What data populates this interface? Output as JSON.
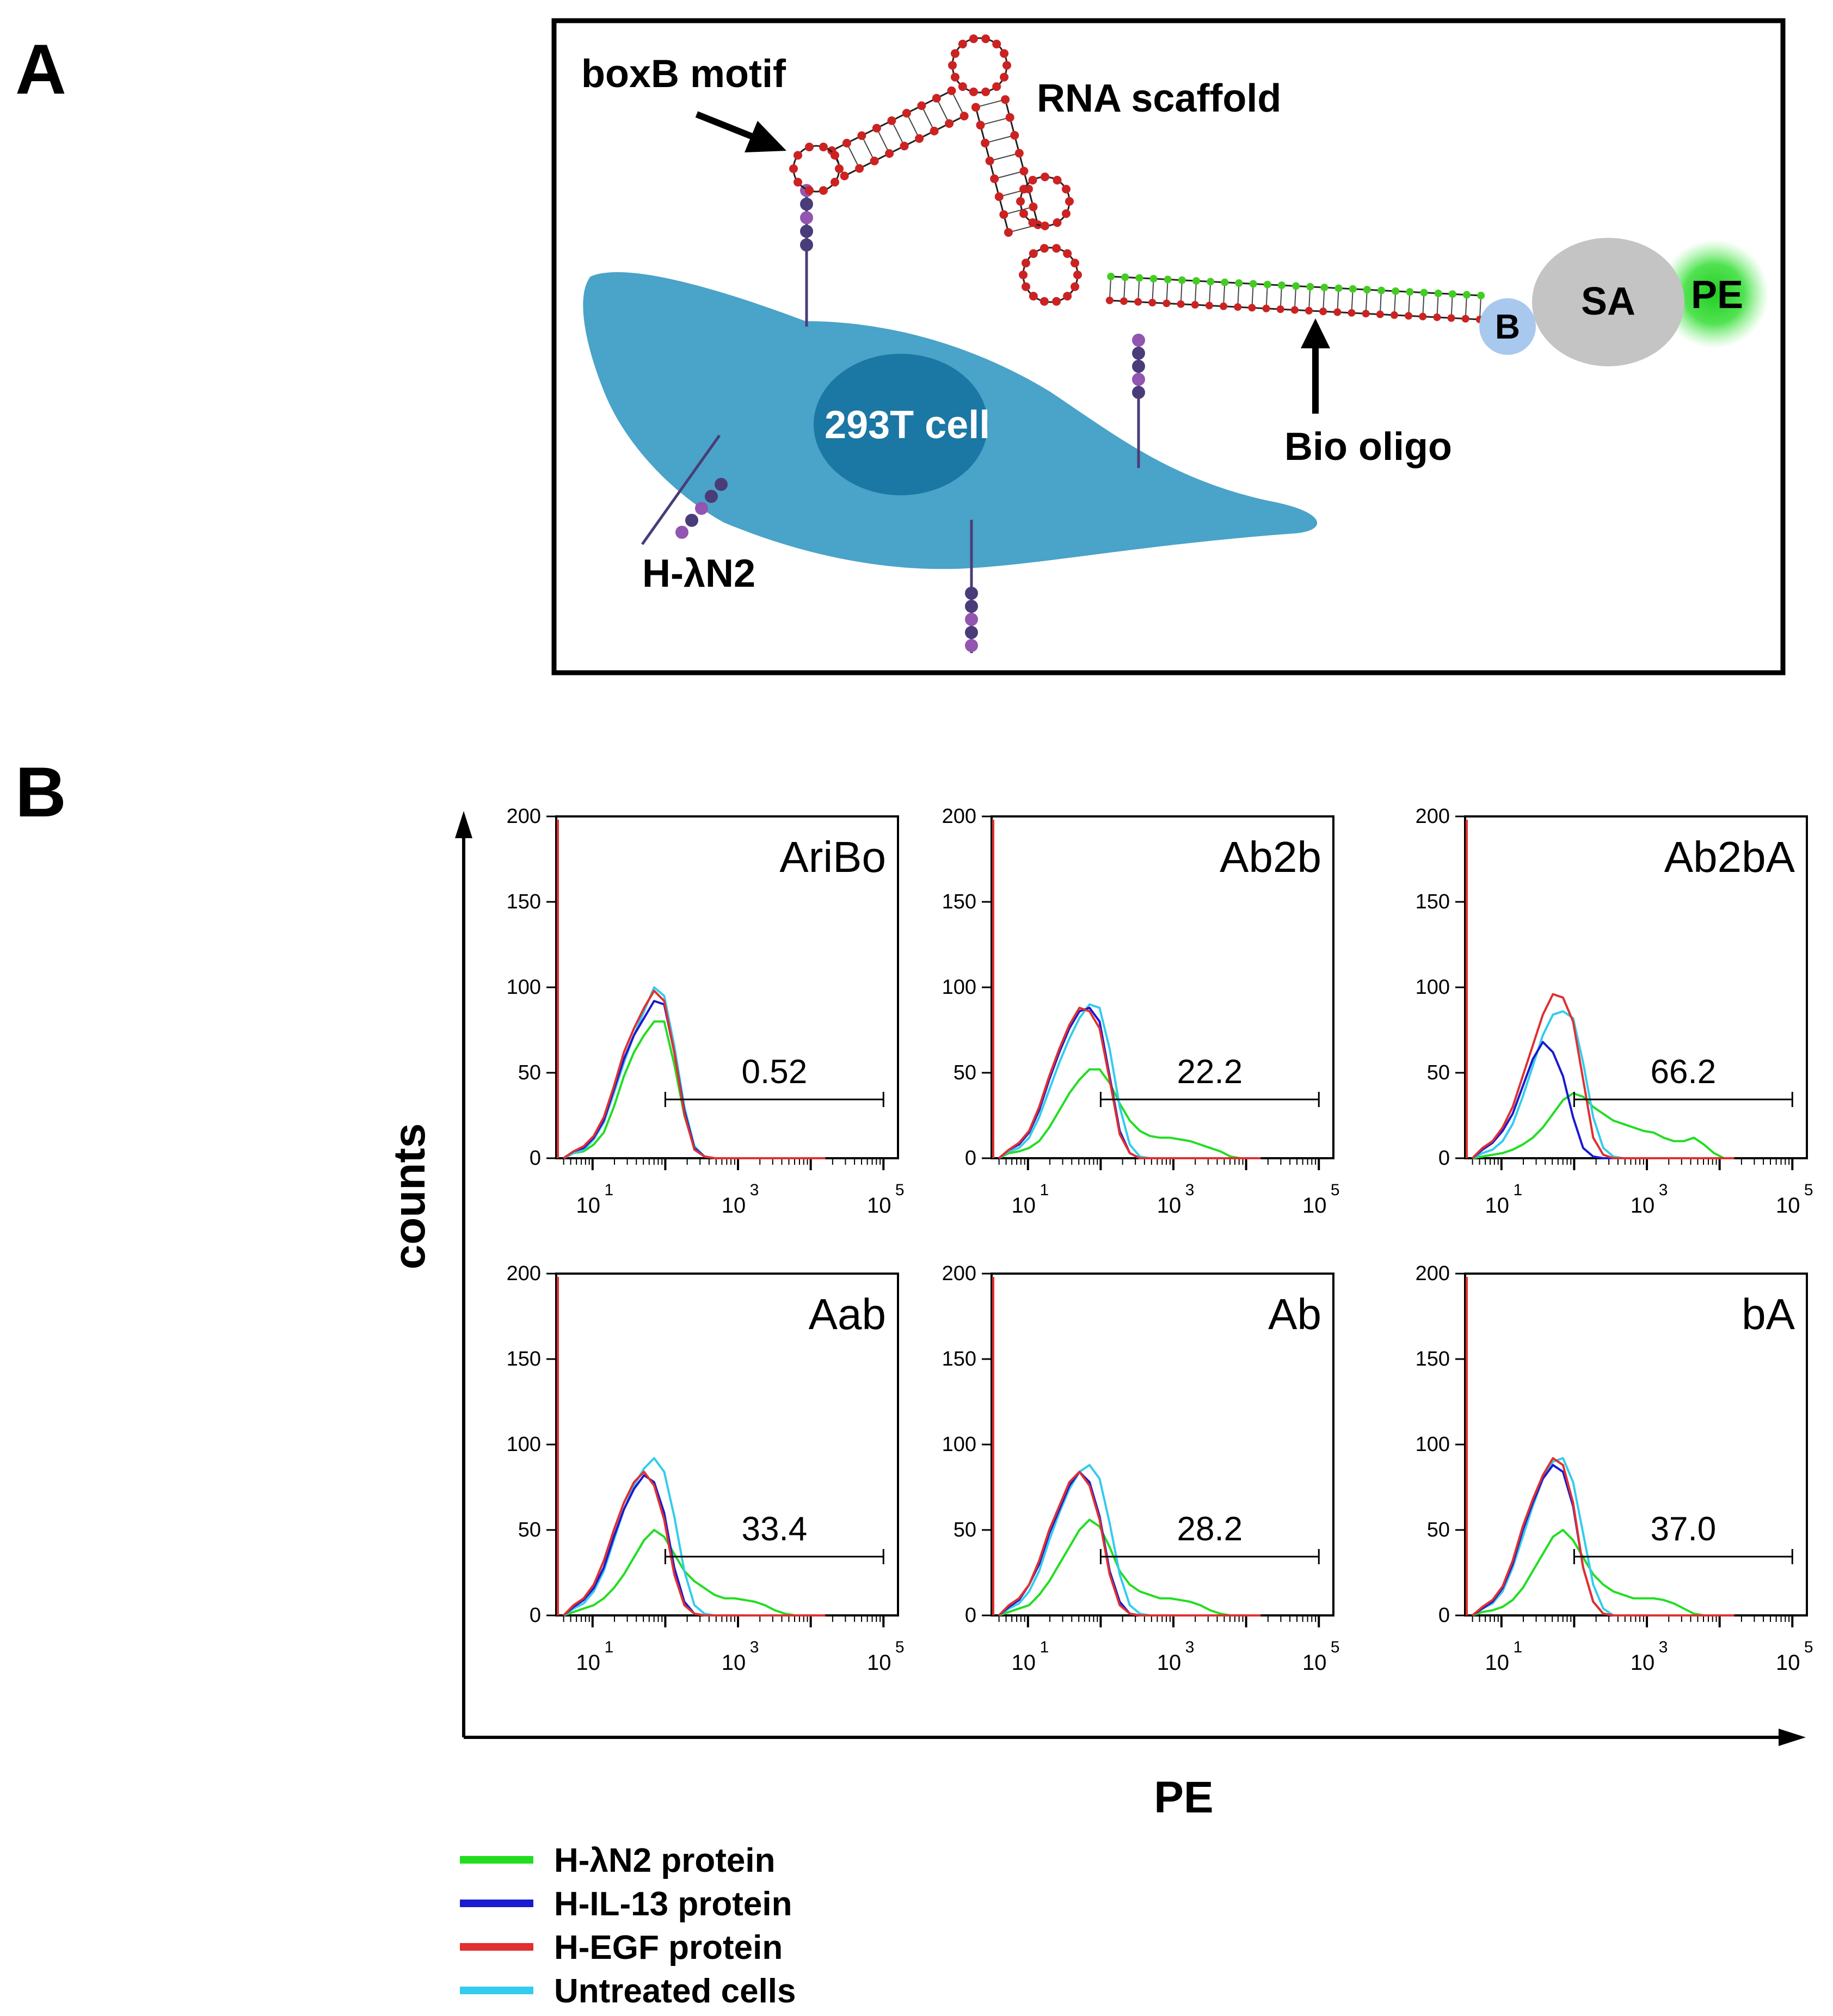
{
  "panels": {
    "a": {
      "letter": "A",
      "labels": {
        "boxb": "boxB motif",
        "rna": "RNA scaffold",
        "cell": "293T cell",
        "bio": "Bio oligo",
        "hln2": "H-λN2",
        "b": "B",
        "sa": "SA",
        "pe": "PE"
      },
      "colors": {
        "cell_body": "#4aa3c8",
        "nucleus": "#1b77a3",
        "rna_dot": "#cc2222",
        "oligo_dot": "#44cc22",
        "bead_dark": "#4a3c78",
        "bead_light": "#9255b0",
        "sa": "#c4c4c4",
        "b": "#a8c8ee",
        "pe_glow": "#22cc22"
      }
    },
    "b": {
      "letter": "B"
    }
  },
  "chart_data": {
    "type": "line",
    "title": "",
    "xlabel": "PE",
    "ylabel": "counts",
    "xscale": "log",
    "xlim_log10": [
      0.5,
      5.2
    ],
    "ylim": [
      0,
      200
    ],
    "y_ticks": [
      "0",
      "50",
      "100",
      "150",
      "200"
    ],
    "x_ticks": [
      {
        "base": "10",
        "exp": "1",
        "log": 1
      },
      {
        "base": "10",
        "exp": "3",
        "log": 3
      },
      {
        "base": "10",
        "exp": "5",
        "log": 5
      }
    ],
    "legend": [
      {
        "key": "hln2",
        "label": "H-λN2 protein",
        "color": "#22dd22"
      },
      {
        "key": "il13",
        "label": "H-IL-13 protein",
        "color": "#1a1ad0"
      },
      {
        "key": "egf",
        "label": "H-EGF protein",
        "color": "#e03030"
      },
      {
        "key": "untreated",
        "label": "Untreated cells",
        "color": "#33ccee"
      }
    ],
    "gate": {
      "from_log10": 2.0,
      "to_log10": 5.0
    },
    "subplots": [
      {
        "name": "AriBo",
        "gate_value": "0.52",
        "x_log10": 1.7,
        "series": [
          {
            "key": "hln2",
            "values": [
              0,
              3,
              4,
              8,
              15,
              30,
              48,
              62,
              72,
              80,
              80,
              55,
              25,
              6,
              1,
              0,
              0,
              0,
              0,
              0,
              0,
              0,
              0,
              0,
              0,
              0,
              0
            ]
          },
          {
            "key": "il13",
            "values": [
              0,
              4,
              6,
              12,
              22,
              40,
              58,
              72,
              82,
              92,
              90,
              62,
              28,
              6,
              1,
              0,
              0,
              0,
              0,
              0,
              0,
              0,
              0,
              0,
              0,
              0,
              0
            ]
          },
          {
            "key": "egf",
            "values": [
              0,
              4,
              7,
              13,
              24,
              42,
              62,
              76,
              88,
              98,
              92,
              62,
              26,
              5,
              1,
              0,
              0,
              0,
              0,
              0,
              0,
              0,
              0,
              0,
              0,
              0,
              0
            ]
          },
          {
            "key": "untreated",
            "values": [
              0,
              3,
              5,
              11,
              21,
              38,
              56,
              72,
              86,
              100,
              95,
              66,
              30,
              7,
              1,
              0,
              0,
              0,
              0,
              0,
              0,
              0,
              0,
              0,
              0,
              0,
              0
            ]
          }
        ]
      },
      {
        "name": "Ab2b",
        "gate_value": "22.2",
        "x_log10": 1.6,
        "series": [
          {
            "key": "hln2",
            "values": [
              0,
              3,
              4,
              6,
              10,
              18,
              28,
              38,
              46,
              52,
              52,
              44,
              32,
              22,
              16,
              13,
              12,
              12,
              11,
              10,
              8,
              6,
              4,
              1,
              0,
              0,
              0
            ]
          },
          {
            "key": "il13",
            "values": [
              0,
              5,
              8,
              15,
              28,
              46,
              62,
              76,
              86,
              88,
              80,
              48,
              16,
              3,
              0,
              0,
              0,
              0,
              0,
              0,
              0,
              0,
              0,
              0,
              0,
              0,
              0
            ]
          },
          {
            "key": "egf",
            "values": [
              0,
              5,
              9,
              16,
              30,
              48,
              64,
              78,
              88,
              86,
              76,
              46,
              14,
              3,
              0,
              0,
              0,
              0,
              0,
              0,
              0,
              0,
              0,
              0,
              0,
              0,
              0
            ]
          },
          {
            "key": "untreated",
            "values": [
              0,
              4,
              6,
              12,
              24,
              40,
              56,
              70,
              82,
              90,
              88,
              64,
              30,
              8,
              1,
              0,
              0,
              0,
              0,
              0,
              0,
              0,
              0,
              0,
              0,
              0,
              0
            ]
          }
        ]
      },
      {
        "name": "Ab2bA",
        "gate_value": "66.2",
        "x_log10": 1.6,
        "series": [
          {
            "key": "hln2",
            "values": [
              0,
              1,
              2,
              3,
              5,
              8,
              12,
              18,
              26,
              34,
              38,
              36,
              30,
              26,
              22,
              20,
              18,
              16,
              15,
              12,
              10,
              10,
              12,
              8,
              3,
              0,
              0
            ]
          },
          {
            "key": "il13",
            "values": [
              0,
              5,
              9,
              16,
              26,
              42,
              58,
              68,
              62,
              48,
              24,
              6,
              1,
              0,
              0,
              0,
              0,
              0,
              0,
              0,
              0,
              0,
              0,
              0,
              0,
              0,
              0
            ]
          },
          {
            "key": "egf",
            "values": [
              0,
              6,
              10,
              18,
              30,
              48,
              66,
              84,
              96,
              94,
              80,
              46,
              12,
              2,
              0,
              0,
              0,
              0,
              0,
              0,
              0,
              0,
              0,
              0,
              0,
              0,
              0
            ]
          },
          {
            "key": "untreated",
            "values": [
              0,
              3,
              5,
              10,
              20,
              36,
              54,
              72,
              84,
              86,
              82,
              56,
              24,
              6,
              1,
              0,
              0,
              0,
              0,
              0,
              0,
              0,
              0,
              0,
              0,
              0,
              0
            ]
          }
        ]
      },
      {
        "name": "Aab",
        "gate_value": "33.4",
        "x_log10": 1.7,
        "series": [
          {
            "key": "hln2",
            "values": [
              0,
              2,
              4,
              6,
              10,
              16,
              24,
              34,
              44,
              50,
              46,
              36,
              26,
              20,
              16,
              12,
              10,
              10,
              9,
              8,
              6,
              3,
              1,
              0,
              0,
              0,
              0
            ]
          },
          {
            "key": "il13",
            "values": [
              0,
              5,
              9,
              16,
              28,
              46,
              62,
              74,
              82,
              78,
              60,
              28,
              8,
              1,
              0,
              0,
              0,
              0,
              0,
              0,
              0,
              0,
              0,
              0,
              0,
              0,
              0
            ]
          },
          {
            "key": "egf",
            "values": [
              0,
              6,
              10,
              18,
              32,
              50,
              66,
              78,
              84,
              76,
              56,
              24,
              6,
              1,
              0,
              0,
              0,
              0,
              0,
              0,
              0,
              0,
              0,
              0,
              0,
              0,
              0
            ]
          },
          {
            "key": "untreated",
            "values": [
              0,
              4,
              7,
              14,
              26,
              44,
              62,
              76,
              86,
              92,
              84,
              58,
              26,
              6,
              1,
              0,
              0,
              0,
              0,
              0,
              0,
              0,
              0,
              0,
              0,
              0,
              0
            ]
          }
        ]
      },
      {
        "name": "Ab",
        "gate_value": "28.2",
        "x_log10": 1.6,
        "series": [
          {
            "key": "hln2",
            "values": [
              0,
              2,
              4,
              6,
              12,
              20,
              30,
              40,
              50,
              56,
              52,
              40,
              26,
              18,
              14,
              12,
              10,
              10,
              9,
              8,
              6,
              3,
              1,
              0,
              0,
              0,
              0
            ]
          },
          {
            "key": "il13",
            "values": [
              0,
              5,
              9,
              18,
              30,
              48,
              62,
              76,
              84,
              78,
              58,
              26,
              8,
              1,
              0,
              0,
              0,
              0,
              0,
              0,
              0,
              0,
              0,
              0,
              0,
              0,
              0
            ]
          },
          {
            "key": "egf",
            "values": [
              0,
              6,
              10,
              18,
              32,
              50,
              64,
              78,
              84,
              76,
              56,
              24,
              6,
              1,
              0,
              0,
              0,
              0,
              0,
              0,
              0,
              0,
              0,
              0,
              0,
              0,
              0
            ]
          },
          {
            "key": "untreated",
            "values": [
              0,
              4,
              7,
              14,
              26,
              44,
              60,
              74,
              84,
              88,
              80,
              54,
              24,
              6,
              1,
              0,
              0,
              0,
              0,
              0,
              0,
              0,
              0,
              0,
              0,
              0,
              0
            ]
          }
        ]
      },
      {
        "name": "bA",
        "gate_value": "37.0",
        "x_log10": 1.7,
        "series": [
          {
            "key": "hln2",
            "values": [
              0,
              2,
              3,
              5,
              9,
              16,
              26,
              36,
              46,
              50,
              44,
              34,
              24,
              18,
              14,
              12,
              10,
              10,
              10,
              9,
              7,
              4,
              1,
              0,
              0,
              0,
              0
            ]
          },
          {
            "key": "il13",
            "values": [
              0,
              4,
              8,
              16,
              30,
              50,
              66,
              80,
              88,
              84,
              64,
              28,
              8,
              1,
              0,
              0,
              0,
              0,
              0,
              0,
              0,
              0,
              0,
              0,
              0,
              0,
              0
            ]
          },
          {
            "key": "egf",
            "values": [
              0,
              5,
              9,
              17,
              32,
              52,
              68,
              82,
              92,
              88,
              66,
              28,
              8,
              1,
              0,
              0,
              0,
              0,
              0,
              0,
              0,
              0,
              0,
              0,
              0,
              0,
              0
            ]
          },
          {
            "key": "untreated",
            "values": [
              0,
              4,
              7,
              14,
              28,
              46,
              64,
              80,
              90,
              92,
              78,
              48,
              18,
              4,
              0,
              0,
              0,
              0,
              0,
              0,
              0,
              0,
              0,
              0,
              0,
              0,
              0
            ]
          }
        ]
      }
    ]
  }
}
